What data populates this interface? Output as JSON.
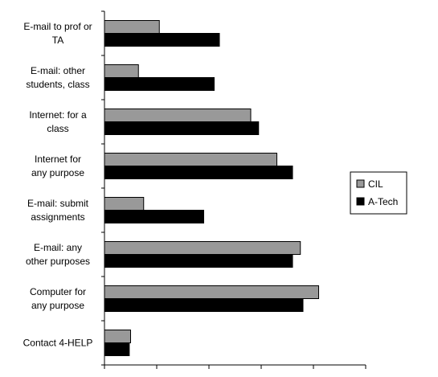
{
  "chart_data": {
    "type": "bar",
    "orientation": "horizontal",
    "categories": [
      [
        "E-mail to prof or",
        "TA"
      ],
      [
        "E-mail: other",
        "students, class"
      ],
      [
        "Internet:  for a",
        "class"
      ],
      [
        "Internet   for",
        "any purpose"
      ],
      [
        "E-mail: submit",
        "assignments"
      ],
      [
        "E-mail: any",
        "other purposes"
      ],
      [
        "Computer for",
        "any purpose"
      ],
      [
        "Contact 4-HELP"
      ]
    ],
    "series": [
      {
        "name": "CIL",
        "color": "#999999",
        "values": [
          21,
          13,
          56,
          66,
          15,
          75,
          82,
          10
        ]
      },
      {
        "name": "A-Tech",
        "color": "#000000",
        "values": [
          44,
          42,
          59,
          72,
          38,
          72,
          76,
          9.5
        ]
      }
    ],
    "xlim": [
      0,
      100
    ],
    "xticks": [
      0,
      20,
      40,
      60,
      80,
      100
    ],
    "grid": false,
    "legend_position": "right",
    "title": "",
    "xlabel": "",
    "ylabel": ""
  }
}
